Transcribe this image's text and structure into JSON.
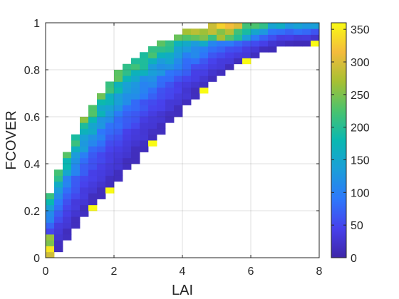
{
  "chart_data": {
    "type": "heatmap",
    "title": "",
    "xlabel": "LAI",
    "ylabel": "FCOVER",
    "xlim": [
      0,
      8
    ],
    "ylim": [
      0,
      1
    ],
    "x_ticks": [
      "0",
      "2",
      "4",
      "6",
      "8"
    ],
    "y_ticks": [
      "0",
      "0.2",
      "0.4",
      "0.6",
      "0.8",
      "1"
    ],
    "grid": true,
    "colormap": "parula",
    "colorbar": {
      "range": [
        0,
        360
      ],
      "ticks": [
        "0",
        "50",
        "100",
        "150",
        "200",
        "250",
        "300",
        "350"
      ]
    },
    "bin_size": {
      "lai": 0.25,
      "fcover": 0.025
    },
    "density_description": "2D histogram of pixel counts; dense band along the upper boundary of the FCOVER-LAI relationship, peak counts near LAI 0-0.25 / FCOVER 0-0.05 and near LAI 4.5-6 / FCOVER 0.95-1"
  }
}
